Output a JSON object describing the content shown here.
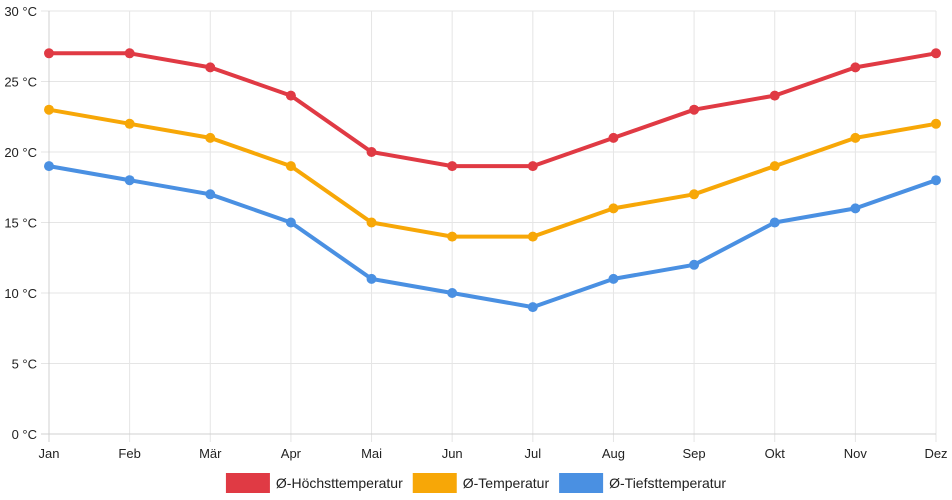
{
  "chart_data": {
    "type": "line",
    "title": "",
    "xlabel": "",
    "ylabel": "",
    "y_unit_suffix": " °C",
    "ylim": [
      0,
      30
    ],
    "y_ticks": [
      0,
      5,
      10,
      15,
      20,
      25,
      30
    ],
    "y_tick_labels": [
      "0 °C",
      "5 °C",
      "10 °C",
      "15 °C",
      "20 °C",
      "25 °C",
      "30 °C"
    ],
    "grid": true,
    "legend_position": "bottom-center",
    "categories": [
      "Jan",
      "Feb",
      "Mär",
      "Apr",
      "Mai",
      "Jun",
      "Jul",
      "Aug",
      "Sep",
      "Okt",
      "Nov",
      "Dez"
    ],
    "series": [
      {
        "name": "Ø-Höchsttemperatur",
        "color": "#e03a44",
        "values": [
          27,
          27,
          26,
          24,
          20,
          19,
          19,
          21,
          23,
          24,
          26,
          27
        ]
      },
      {
        "name": "Ø-Temperatur",
        "color": "#f7a707",
        "values": [
          23,
          22,
          21,
          19,
          15,
          14,
          14,
          16,
          17,
          19,
          21,
          22
        ]
      },
      {
        "name": "Ø-Tiefsttemperatur",
        "color": "#4a90e2",
        "values": [
          19,
          18,
          17,
          15,
          11,
          10,
          9,
          11,
          12,
          15,
          16,
          18
        ]
      }
    ]
  }
}
